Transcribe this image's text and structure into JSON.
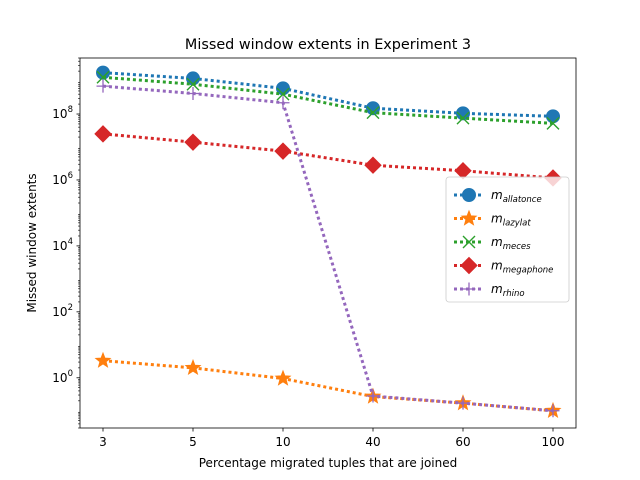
{
  "chart_data": {
    "type": "line",
    "title": "Missed window extents in Experiment 3",
    "xlabel": "Percentage migrated tuples that are joined",
    "ylabel": "Missed window extents",
    "categories": [
      "3",
      "5",
      "10",
      "40",
      "60",
      "100"
    ],
    "yscale": "log",
    "ylim": [
      0.03,
      5000000000
    ],
    "y_ticks": [
      {
        "value": 1,
        "base": "10",
        "exp": "0"
      },
      {
        "value": 100,
        "base": "10",
        "exp": "2"
      },
      {
        "value": 10000,
        "base": "10",
        "exp": "4"
      },
      {
        "value": 1000000,
        "base": "10",
        "exp": "6"
      },
      {
        "value": 100000000,
        "base": "10",
        "exp": "8"
      }
    ],
    "grid": false,
    "legend_position": "center-right",
    "series": [
      {
        "name_main": "m",
        "name_sub": "allatonce",
        "color": "#1f77b4",
        "marker": "circle",
        "values": [
          1800000000,
          1200000000,
          600000000,
          150000000,
          105000000,
          85000000
        ]
      },
      {
        "name_main": "m",
        "name_sub": "lazylat",
        "color": "#ff7f0e",
        "marker": "star",
        "values": [
          3.3,
          2.0,
          0.95,
          0.27,
          0.17,
          0.1
        ]
      },
      {
        "name_main": "m",
        "name_sub": "meces",
        "color": "#2ca02c",
        "marker": "x",
        "values": [
          1300000000,
          800000000,
          400000000,
          110000000,
          75000000,
          52000000
        ]
      },
      {
        "name_main": "m",
        "name_sub": "megaphone",
        "color": "#d62728",
        "marker": "diamond",
        "values": [
          25000000,
          14000000,
          7500000,
          2800000,
          1900000,
          1150000
        ]
      },
      {
        "name_main": "m",
        "name_sub": "rhino",
        "color": "#9467bd",
        "marker": "plus",
        "values": [
          700000000,
          420000000,
          220000000,
          0.28,
          0.17,
          0.1
        ]
      }
    ]
  }
}
